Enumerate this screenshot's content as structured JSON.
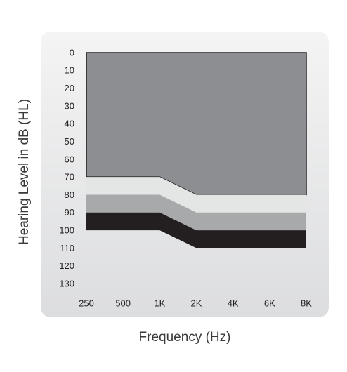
{
  "chart_data": {
    "type": "stacked_area",
    "y_label": "Hearing Level in dB (HL)",
    "x_label": "Frequency (Hz)",
    "categories": [
      "250",
      "500",
      "1K",
      "2K",
      "4K",
      "6K",
      "8K"
    ],
    "series": [
      {
        "color": "#8d8e91",
        "values": [
          70,
          70,
          70,
          80,
          80,
          80,
          80
        ]
      },
      {
        "color": "#e4e5e5",
        "values": [
          10,
          10,
          10,
          10,
          10,
          10,
          10
        ]
      },
      {
        "color": "#a7a9aa",
        "values": [
          10,
          10,
          10,
          10,
          10,
          10,
          10
        ]
      },
      {
        "color": "#231f20",
        "values": [
          10,
          10,
          10,
          10,
          10,
          10,
          10
        ]
      }
    ],
    "ylim": [
      0,
      130
    ],
    "y_inverted": true,
    "yticks": [
      0,
      10,
      20,
      30,
      40,
      50,
      60,
      70,
      80,
      90,
      100,
      110,
      120,
      130
    ],
    "grid": false
  }
}
